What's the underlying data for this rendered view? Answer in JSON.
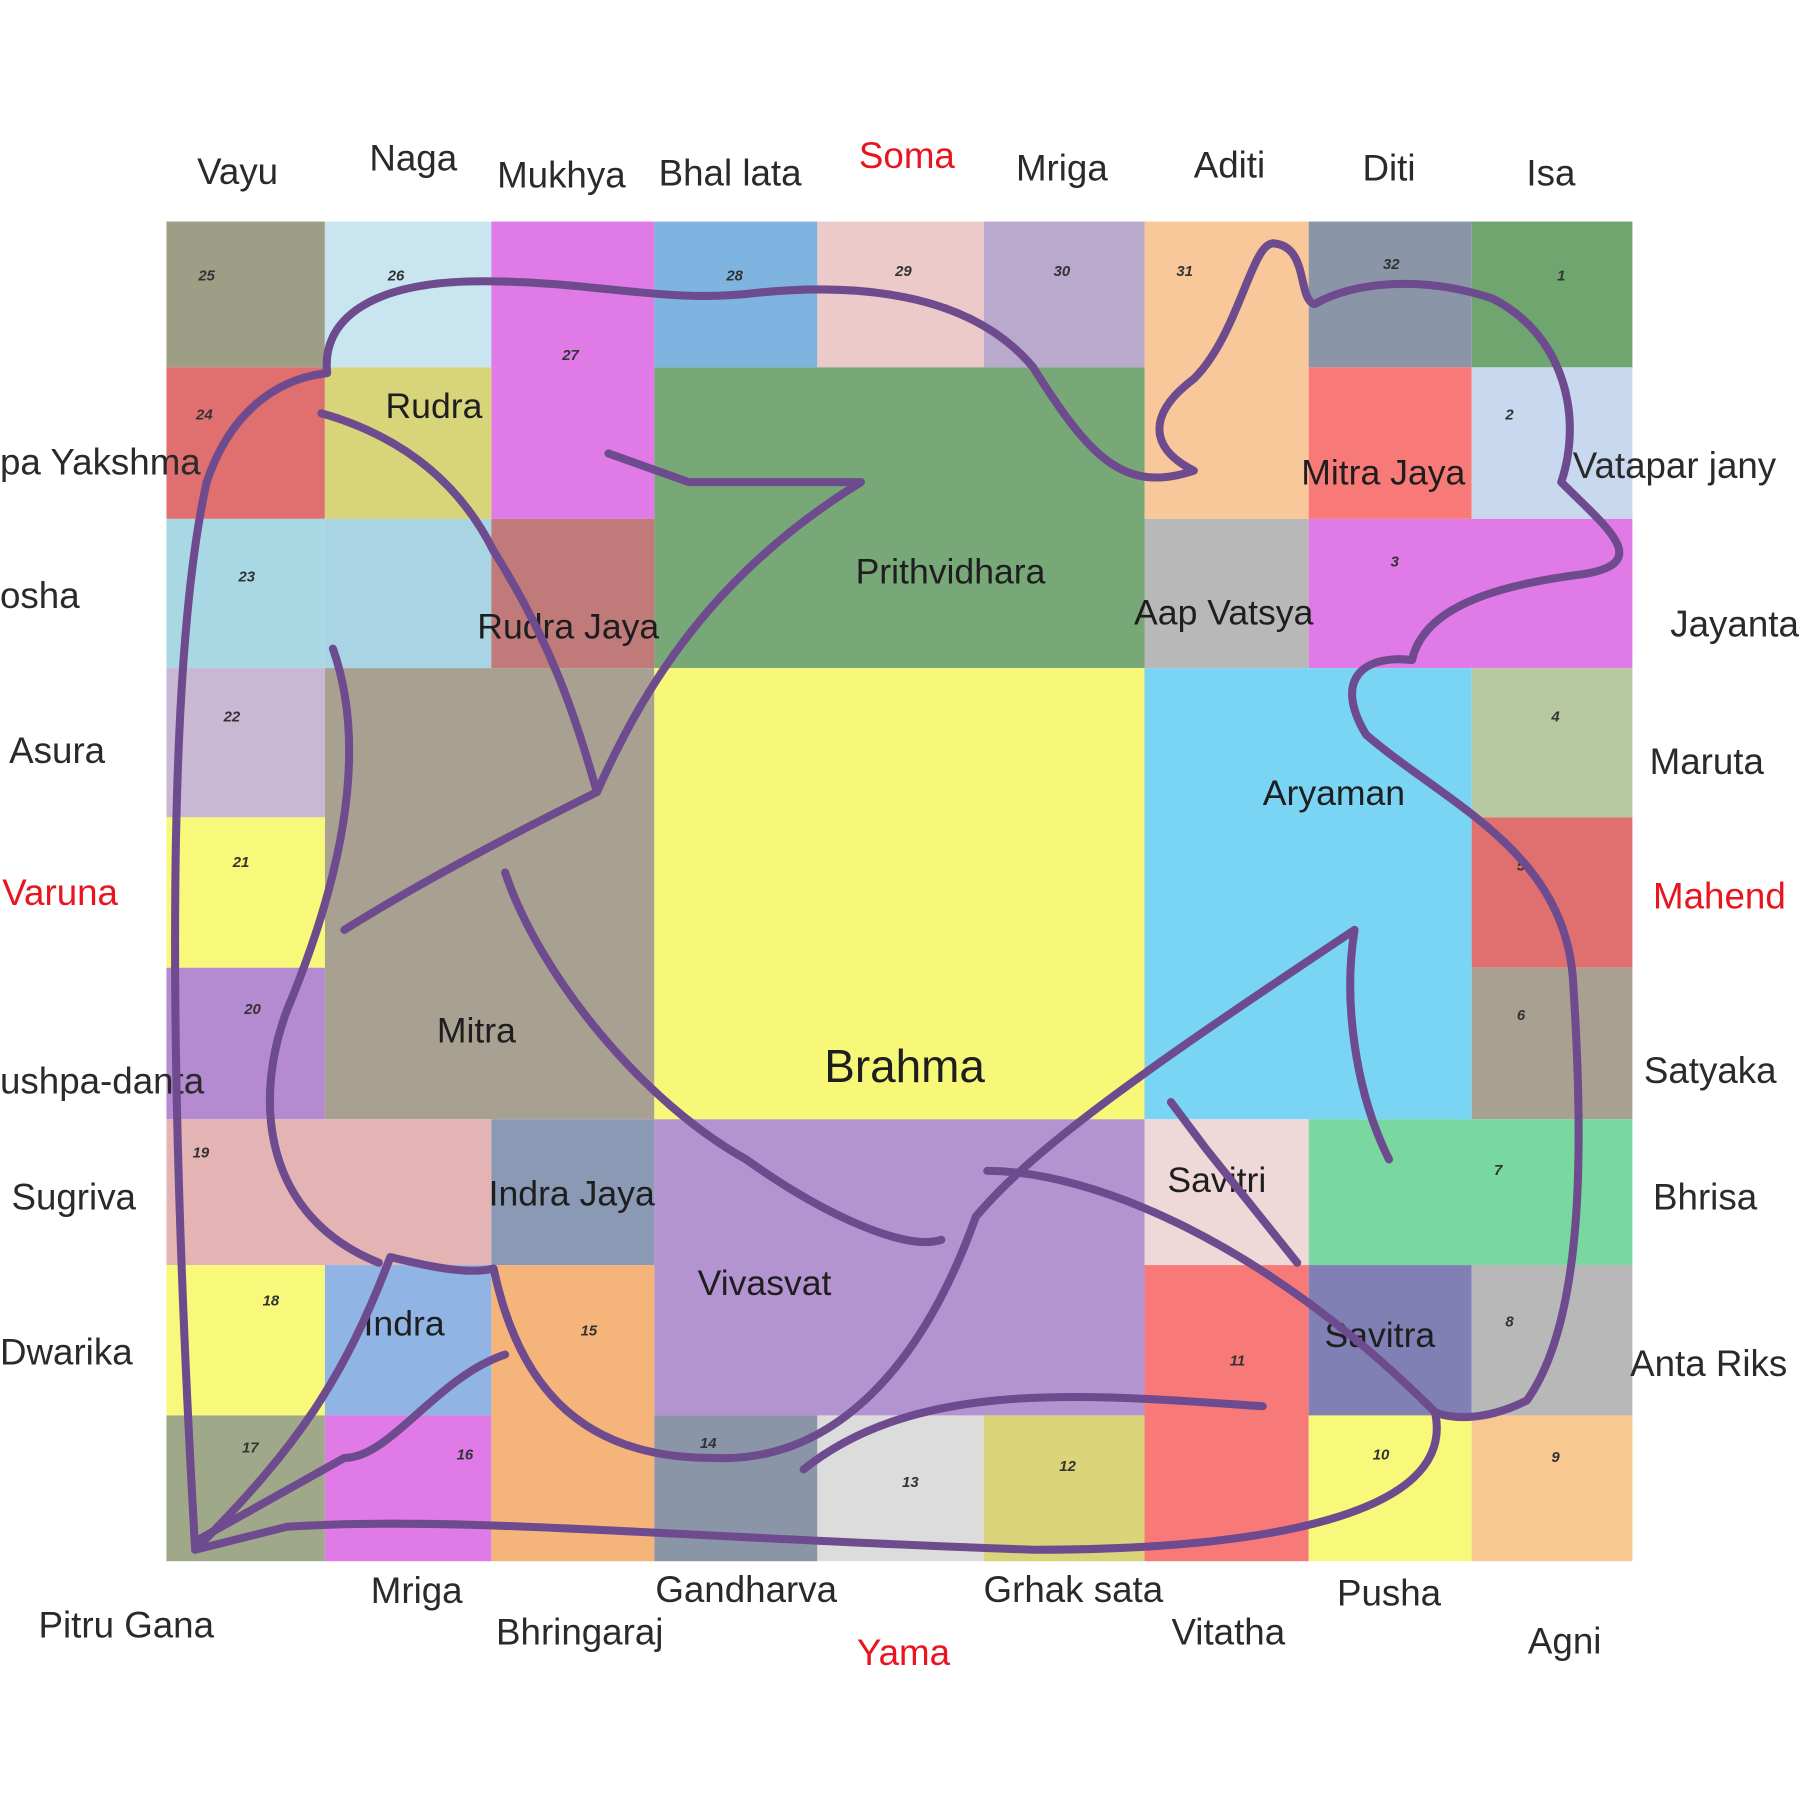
{
  "outer_labels": {
    "top": [
      "Vayu",
      "Naga",
      "Mukhya",
      "Bhal lata",
      "Soma",
      "Mriga",
      "Aditi",
      "Diti",
      "Isa"
    ],
    "left": [
      "pa Yakshma",
      "osha",
      "Asura",
      "Varuna",
      "ushpa-danta",
      "Sugriva",
      "Dwarika"
    ],
    "right": [
      "Vatapar jany",
      "Jayanta",
      "Maruta",
      "Mahend",
      "Satyaka",
      "Bhrisa",
      "Anta Riks"
    ],
    "bottom": [
      "Pitru Gana",
      "Mriga",
      "Bhringaraj",
      "Gandharva",
      "Yama",
      "Grhak sata",
      "Vitatha",
      "Pusha",
      "Agni"
    ]
  },
  "cells": [
    "25",
    "26",
    "27",
    "28",
    "29",
    "30",
    "31",
    "32",
    "1",
    "24",
    "Rudra",
    "Prithvidhara",
    "Mitra Jaya",
    "2",
    "23",
    "Rudra Jaya",
    "Aap Vatsya",
    "3",
    "22",
    "Mitra",
    "Brahma",
    "Aryaman",
    "4",
    "21",
    "5",
    "20",
    "6",
    "19",
    "Indra Jaya",
    "Vivasvat",
    "Savitri",
    "7",
    "18",
    "Indra",
    "15",
    "11",
    "Savitra",
    "8",
    "17",
    "16",
    "14",
    "13",
    "12",
    "10",
    "9"
  ]
}
